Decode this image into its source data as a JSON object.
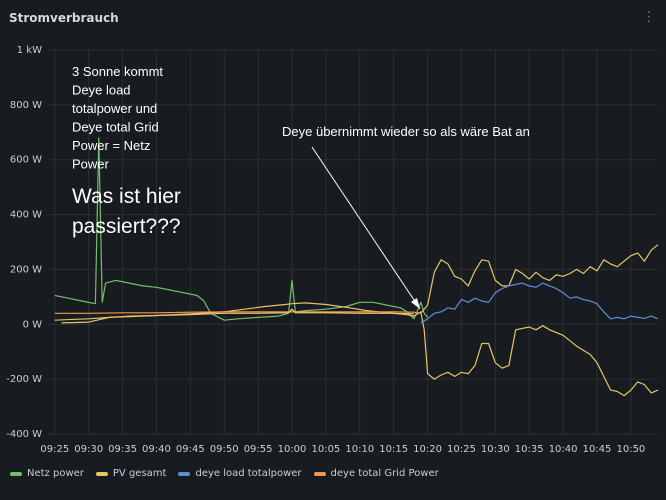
{
  "panel": {
    "title": "Stromverbrauch",
    "menu_icon": "menu-icon"
  },
  "annotations": {
    "note_lines": [
      "3 Sonne kommt",
      "Deye load",
      "totalpower und",
      "Deye total Grid",
      "Power = Netz",
      "Power"
    ],
    "question_lines": [
      "Was ist hier",
      "passiert???"
    ],
    "arrow_label": "Deye übernimmt wieder so als wäre Bat an"
  },
  "colors": {
    "background": "#181b1f",
    "grid": "#2c2f36",
    "netz": "#73bf69",
    "pv": "#e6c565",
    "load": "#5f8ed6",
    "grid_power": "#f2955a",
    "annotation": "#ffffff"
  },
  "chart_data": {
    "type": "line",
    "title": "Stromverbrauch",
    "x_unit": "time",
    "y_unit": "W",
    "ylim": [
      -400,
      1000
    ],
    "y_ticks": [
      {
        "value": 1000,
        "label": "1 kW"
      },
      {
        "value": 800,
        "label": "800 W"
      },
      {
        "value": 600,
        "label": "600 W"
      },
      {
        "value": 400,
        "label": "400 W"
      },
      {
        "value": 200,
        "label": "200 W"
      },
      {
        "value": 0,
        "label": "0 W"
      },
      {
        "value": -200,
        "label": "-200 W"
      },
      {
        "value": -400,
        "label": "-400 W"
      }
    ],
    "x_ticks": [
      "09:25",
      "09:30",
      "09:35",
      "09:40",
      "09:45",
      "09:50",
      "09:55",
      "10:00",
      "10:05",
      "10:10",
      "10:15",
      "10:20",
      "10:25",
      "10:30",
      "10:35",
      "10:40",
      "10:45",
      "10:50"
    ],
    "xlim": [
      "09:24",
      "10:54"
    ],
    "grid": true,
    "legend_position": "bottom",
    "series": [
      {
        "name": "Netz power",
        "color_key": "netz",
        "points": [
          [
            "09:25",
            105
          ],
          [
            "09:27",
            95
          ],
          [
            "09:29",
            85
          ],
          [
            "09:31",
            75
          ],
          [
            "09:31:30",
            680
          ],
          [
            "09:32",
            80
          ],
          [
            "09:32:30",
            150
          ],
          [
            "09:34",
            160
          ],
          [
            "09:36",
            150
          ],
          [
            "09:38",
            140
          ],
          [
            "09:40",
            135
          ],
          [
            "09:42",
            125
          ],
          [
            "09:44",
            115
          ],
          [
            "09:46",
            105
          ],
          [
            "09:47",
            85
          ],
          [
            "09:48",
            40
          ],
          [
            "09:50",
            15
          ],
          [
            "09:52",
            20
          ],
          [
            "09:55",
            25
          ],
          [
            "09:58",
            30
          ],
          [
            "09:59:30",
            40
          ],
          [
            "10:00",
            160
          ],
          [
            "10:00:30",
            45
          ],
          [
            "10:02",
            50
          ],
          [
            "10:05",
            55
          ],
          [
            "10:08",
            65
          ],
          [
            "10:10",
            80
          ],
          [
            "10:12",
            80
          ],
          [
            "10:14",
            70
          ],
          [
            "10:16",
            60
          ],
          [
            "10:17",
            45
          ],
          [
            "10:18",
            20
          ],
          [
            "10:19",
            80
          ],
          [
            "10:19:30",
            40
          ],
          [
            "10:20",
            25
          ]
        ]
      },
      {
        "name": "PV gesamt",
        "color_key": "pv",
        "points": [
          [
            "09:25",
            15
          ],
          [
            "09:28",
            18
          ],
          [
            "09:30",
            20
          ],
          [
            "09:33",
            25
          ],
          [
            "09:36",
            28
          ],
          [
            "09:40",
            32
          ],
          [
            "09:45",
            38
          ],
          [
            "09:50",
            45
          ],
          [
            "09:53",
            55
          ],
          [
            "09:56",
            65
          ],
          [
            "09:59",
            72
          ],
          [
            "10:00",
            75
          ],
          [
            "10:02",
            78
          ],
          [
            "10:05",
            72
          ],
          [
            "10:08",
            62
          ],
          [
            "10:11",
            50
          ],
          [
            "10:14",
            42
          ],
          [
            "10:17",
            35
          ],
          [
            "10:18",
            30
          ],
          [
            "10:19",
            45
          ],
          [
            "10:19:30",
            -20
          ],
          [
            "10:20",
            -180
          ],
          [
            "10:21",
            -200
          ],
          [
            "10:22",
            -185
          ],
          [
            "10:23",
            -175
          ],
          [
            "10:24",
            -190
          ],
          [
            "10:25",
            -175
          ],
          [
            "10:26",
            -180
          ],
          [
            "10:27",
            -150
          ],
          [
            "10:28",
            -70
          ],
          [
            "10:29",
            -70
          ],
          [
            "10:30",
            -140
          ],
          [
            "10:31",
            -160
          ],
          [
            "10:32",
            -150
          ],
          [
            "10:33",
            -20
          ],
          [
            "10:35",
            -10
          ],
          [
            "10:36",
            -20
          ],
          [
            "10:37",
            -5
          ],
          [
            "10:38",
            -20
          ],
          [
            "10:40",
            -40
          ],
          [
            "10:42",
            -80
          ],
          [
            "10:44",
            -110
          ],
          [
            "10:45",
            -140
          ],
          [
            "10:46",
            -190
          ],
          [
            "10:47",
            -240
          ],
          [
            "10:48",
            -245
          ],
          [
            "10:49",
            -260
          ],
          [
            "10:50",
            -240
          ],
          [
            "10:51",
            -210
          ],
          [
            "10:52",
            -220
          ],
          [
            "10:53",
            -250
          ],
          [
            "10:54",
            -240
          ]
        ]
      },
      {
        "name": "PV gesamt",
        "color_key": "pv",
        "mirror": true,
        "points": [
          [
            "10:19",
            40
          ],
          [
            "10:20",
            70
          ],
          [
            "10:21",
            190
          ],
          [
            "10:22",
            235
          ],
          [
            "10:23",
            220
          ],
          [
            "10:24",
            175
          ],
          [
            "10:25",
            165
          ],
          [
            "10:26",
            140
          ],
          [
            "10:27",
            195
          ],
          [
            "10:28",
            235
          ],
          [
            "10:29",
            230
          ],
          [
            "10:30",
            160
          ],
          [
            "10:31",
            140
          ],
          [
            "10:32",
            140
          ],
          [
            "10:33",
            200
          ],
          [
            "10:34",
            185
          ],
          [
            "10:35",
            165
          ],
          [
            "10:36",
            190
          ],
          [
            "10:37",
            170
          ],
          [
            "10:38",
            160
          ],
          [
            "10:39",
            180
          ],
          [
            "10:40",
            175
          ],
          [
            "10:41",
            185
          ],
          [
            "10:42",
            200
          ],
          [
            "10:43",
            185
          ],
          [
            "10:44",
            210
          ],
          [
            "10:45",
            195
          ],
          [
            "10:46",
            235
          ],
          [
            "10:47",
            220
          ],
          [
            "10:48",
            210
          ],
          [
            "10:49",
            230
          ],
          [
            "10:50",
            250
          ],
          [
            "10:51",
            260
          ],
          [
            "10:52",
            230
          ],
          [
            "10:53",
            270
          ],
          [
            "10:54",
            290
          ]
        ]
      },
      {
        "name": "deye load totalpower",
        "color_key": "load",
        "points": [
          [
            "10:19",
            5
          ],
          [
            "10:20",
            20
          ],
          [
            "10:21",
            40
          ],
          [
            "10:22",
            45
          ],
          [
            "10:23",
            60
          ],
          [
            "10:24",
            55
          ],
          [
            "10:25",
            90
          ],
          [
            "10:26",
            80
          ],
          [
            "10:27",
            95
          ],
          [
            "10:28",
            85
          ],
          [
            "10:29",
            80
          ],
          [
            "10:30",
            115
          ],
          [
            "10:31",
            130
          ],
          [
            "10:32",
            140
          ],
          [
            "10:33",
            145
          ],
          [
            "10:34",
            150
          ],
          [
            "10:35",
            140
          ],
          [
            "10:36",
            135
          ],
          [
            "10:37",
            150
          ],
          [
            "10:38",
            140
          ],
          [
            "10:39",
            130
          ],
          [
            "10:40",
            115
          ],
          [
            "10:41",
            95
          ],
          [
            "10:42",
            100
          ],
          [
            "10:43",
            90
          ],
          [
            "10:44",
            85
          ],
          [
            "10:45",
            75
          ],
          [
            "10:46",
            45
          ],
          [
            "10:47",
            20
          ],
          [
            "10:48",
            25
          ],
          [
            "10:49",
            20
          ],
          [
            "10:50",
            30
          ],
          [
            "10:51",
            25
          ],
          [
            "10:52",
            22
          ],
          [
            "10:53",
            30
          ],
          [
            "10:54",
            20
          ]
        ]
      },
      {
        "name": "deye total Grid Power",
        "color_key": "grid_power",
        "points": [
          [
            "09:25",
            40
          ],
          [
            "09:30",
            40
          ],
          [
            "09:35",
            42
          ],
          [
            "09:40",
            42
          ],
          [
            "09:45",
            44
          ],
          [
            "09:50",
            45
          ],
          [
            "09:55",
            45
          ],
          [
            "10:00",
            45
          ],
          [
            "10:05",
            45
          ],
          [
            "10:10",
            45
          ],
          [
            "10:15",
            45
          ],
          [
            "10:18",
            44
          ],
          [
            "10:19",
            40
          ]
        ]
      },
      {
        "name": "PV gesamt",
        "color_key": "pv",
        "points": [
          [
            "09:26",
            5
          ],
          [
            "09:30",
            8
          ],
          [
            "09:33",
            25
          ],
          [
            "09:36",
            30
          ],
          [
            "09:40",
            32
          ],
          [
            "09:45",
            35
          ],
          [
            "09:50",
            40
          ],
          [
            "09:55",
            40
          ],
          [
            "09:59:30",
            42
          ],
          [
            "10:00",
            55
          ],
          [
            "10:00:30",
            42
          ],
          [
            "10:05",
            42
          ],
          [
            "10:10",
            40
          ],
          [
            "10:15",
            40
          ],
          [
            "10:18",
            38
          ]
        ]
      }
    ]
  },
  "legend": [
    {
      "label": "Netz power",
      "color_key": "netz"
    },
    {
      "label": "PV gesamt",
      "color_key": "pv"
    },
    {
      "label": "deye load totalpower",
      "color_key": "load"
    },
    {
      "label": "deye total Grid Power",
      "color_key": "grid_power"
    }
  ]
}
